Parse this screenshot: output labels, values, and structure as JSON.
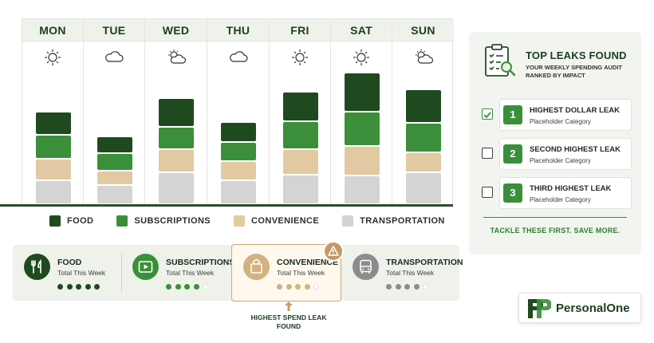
{
  "days": [
    {
      "label": "MON",
      "weather": "sun-icon"
    },
    {
      "label": "TUE",
      "weather": "cloud-icon"
    },
    {
      "label": "WED",
      "weather": "partly-sunny-icon"
    },
    {
      "label": "THU",
      "weather": "cloud-icon"
    },
    {
      "label": "FRI",
      "weather": "sun-icon"
    },
    {
      "label": "SAT",
      "weather": "sun-icon"
    },
    {
      "label": "SUN",
      "weather": "partly-sunny-icon"
    }
  ],
  "chart_data": {
    "type": "bar",
    "stacked": true,
    "categories": [
      "MON",
      "TUE",
      "WED",
      "THU",
      "FRI",
      "SAT",
      "SUN"
    ],
    "series": [
      {
        "name": "TRANSPORTATION",
        "color": "#d4d4d4",
        "values": [
          30,
          24,
          40,
          30,
          37,
          36,
          40
        ]
      },
      {
        "name": "CONVENIENCE",
        "color": "#e2c9a2",
        "values": [
          27,
          18,
          29,
          24,
          32,
          37,
          25
        ]
      },
      {
        "name": "SUBSCRIPTIONS",
        "color": "#3b8f3a",
        "values": [
          30,
          22,
          28,
          24,
          35,
          43,
          37
        ]
      },
      {
        "name": "FOOD",
        "color": "#1f4a20",
        "values": [
          29,
          21,
          36,
          25,
          37,
          49,
          42
        ]
      }
    ],
    "xlabel": "",
    "ylabel": "",
    "grid": false,
    "legend_position": "bottom"
  },
  "legend": [
    {
      "label": "FOOD",
      "color": "#1f4a20"
    },
    {
      "label": "SUBSCRIPTIONS",
      "color": "#3b8f3a"
    },
    {
      "label": "CONVENIENCE",
      "color": "#e2c9a2"
    },
    {
      "label": "TRANSPORTATION",
      "color": "#d4d4d4"
    }
  ],
  "categories_strip": [
    {
      "title": "FOOD",
      "subtitle": "Total This Week",
      "icon": "fork-knife-icon",
      "color": "#1f4a20",
      "level": 5,
      "max": 5
    },
    {
      "title": "SUBSCRIPTIONS",
      "subtitle": "Total This Week",
      "icon": "play-icon",
      "color": "#3b8f3a",
      "level": 4,
      "max": 5
    },
    {
      "title": "CONVENIENCE",
      "subtitle": "Total This Week",
      "icon": "shopping-bag-icon",
      "color": "#d2b27e",
      "level": 4,
      "max": 5
    },
    {
      "title": "TRANSPORTATION",
      "subtitle": "Total This Week",
      "icon": "bus-icon",
      "color": "#8c8c8c",
      "level": 4,
      "max": 5
    }
  ],
  "warning_icon": "warning-icon",
  "leak_note": "HIGHEST SPEND LEAK FOUND",
  "leaks": {
    "title": "TOP LEAKS FOUND",
    "subtitle": "YOUR WEEKLY SPENDING AUDIT RANKED BY IMPACT",
    "items": [
      {
        "number": "1",
        "name": "HIGHEST DOLLAR LEAK",
        "category": "Placeholder Category",
        "checked": true
      },
      {
        "number": "2",
        "name": "SECOND HIGHEST LEAK",
        "category": "Placeholder Category",
        "checked": false
      },
      {
        "number": "3",
        "name": "THIRD HIGHEST LEAK",
        "category": "Placeholder Category",
        "checked": false
      }
    ],
    "tagline": "TACKLE THESE FIRST. SAVE MORE."
  },
  "brand": {
    "name": "PersonalOne"
  },
  "colors": {
    "accent": "#3b8f3a",
    "dark": "#1f4a20",
    "warning": "#c39a66"
  }
}
